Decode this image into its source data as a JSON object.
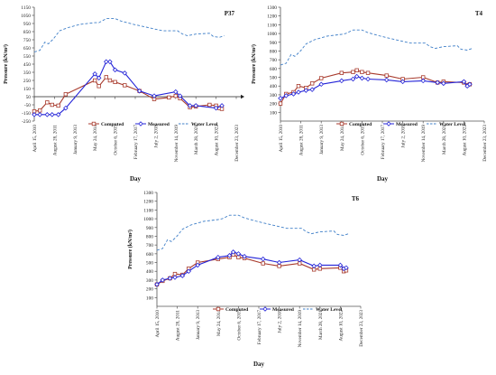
{
  "x_tick_labels": [
    "April 15, 2010",
    "August 28, 2011",
    "January 9, 2013",
    "May 24, 2014",
    "October 6, 2015",
    "February 17, 2017",
    "July 2, 2018",
    "November 14, 2019",
    "March 28, 2021",
    "August 10, 2022",
    "December 23, 2023"
  ],
  "legend": {
    "computed": "Computed",
    "measured": "Measured",
    "water": "Water Level"
  },
  "colors": {
    "computed": "#a83a2c",
    "measured": "#2424d8",
    "water": "#3f7fc8",
    "axis": "#555555",
    "ref": "#222222"
  },
  "chart_data": [
    {
      "type": "line",
      "title": "P37",
      "xlabel": "Day",
      "ylabel": "Pressure (kN/m²)",
      "ylim": [
        -250,
        1150
      ],
      "yticks": [
        -250,
        -150,
        -50,
        50,
        150,
        250,
        350,
        450,
        550,
        650,
        750,
        850,
        950,
        1050,
        1150
      ],
      "xlim": [
        "2010-04-15",
        "2023-12-23"
      ],
      "legend_position": "bottom",
      "series": [
        {
          "name": "Computed",
          "points": [
            [
              "2010-04-15",
              -130
            ],
            [
              "2010-09-01",
              -120
            ],
            [
              "2011-03-01",
              -20
            ],
            [
              "2011-07-01",
              -50
            ],
            [
              "2011-12-01",
              -60
            ],
            [
              "2012-06-01",
              80
            ],
            [
              "2014-05-24",
              250
            ],
            [
              "2014-09-01",
              180
            ],
            [
              "2015-03-01",
              290
            ],
            [
              "2015-06-01",
              250
            ],
            [
              "2015-10-06",
              230
            ],
            [
              "2016-06-01",
              190
            ],
            [
              "2017-06-01",
              120
            ],
            [
              "2018-06-01",
              20
            ],
            [
              "2019-06-01",
              40
            ],
            [
              "2019-11-14",
              60
            ],
            [
              "2020-03-01",
              30
            ],
            [
              "2020-11-01",
              -80
            ],
            [
              "2021-03-28",
              -70
            ],
            [
              "2022-03-01",
              -50
            ],
            [
              "2022-08-10",
              -60
            ],
            [
              "2022-11-01",
              -90
            ],
            [
              "2023-01-01",
              -100
            ]
          ]
        },
        {
          "name": "Measured",
          "points": [
            [
              "2010-04-15",
              -170
            ],
            [
              "2010-09-01",
              -170
            ],
            [
              "2011-03-01",
              -170
            ],
            [
              "2011-07-01",
              -170
            ],
            [
              "2011-12-01",
              -170
            ],
            [
              "2012-06-01",
              -90
            ],
            [
              "2014-05-24",
              330
            ],
            [
              "2014-09-01",
              280
            ],
            [
              "2015-03-01",
              480
            ],
            [
              "2015-06-01",
              480
            ],
            [
              "2015-10-06",
              380
            ],
            [
              "2016-06-01",
              340
            ],
            [
              "2017-06-01",
              120
            ],
            [
              "2018-06-01",
              60
            ],
            [
              "2019-11-14",
              110
            ],
            [
              "2020-03-01",
              60
            ],
            [
              "2020-11-01",
              -60
            ],
            [
              "2021-03-28",
              -60
            ],
            [
              "2022-08-10",
              -90
            ],
            [
              "2023-01-01",
              -60
            ]
          ]
        },
        {
          "name": "Water Level",
          "dashed": true,
          "points": [
            [
              "2010-04-15",
              600
            ],
            [
              "2010-09-01",
              620
            ],
            [
              "2011-01-01",
              720
            ],
            [
              "2011-04-01",
              700
            ],
            [
              "2011-08-01",
              760
            ],
            [
              "2012-01-01",
              860
            ],
            [
              "2012-08-01",
              900
            ],
            [
              "2013-06-01",
              940
            ],
            [
              "2014-05-24",
              960
            ],
            [
              "2014-09-01",
              960
            ],
            [
              "2015-03-01",
              1010
            ],
            [
              "2015-10-06",
              1010
            ],
            [
              "2016-03-01",
              980
            ],
            [
              "2017-01-01",
              940
            ],
            [
              "2018-01-01",
              900
            ],
            [
              "2019-01-01",
              860
            ],
            [
              "2020-01-01",
              860
            ],
            [
              "2020-05-01",
              820
            ],
            [
              "2020-09-01",
              800
            ],
            [
              "2021-03-28",
              820
            ],
            [
              "2022-03-01",
              830
            ],
            [
              "2022-06-01",
              790
            ],
            [
              "2022-11-01",
              780
            ],
            [
              "2023-03-01",
              800
            ]
          ]
        }
      ],
      "reference_line": 50
    },
    {
      "type": "line",
      "title": "T4",
      "xlabel": "Day",
      "ylabel": "Pressure (kN/m²)",
      "ylim": [
        0,
        1300
      ],
      "yticks": [
        100,
        200,
        300,
        400,
        500,
        600,
        700,
        800,
        900,
        1000,
        1100,
        1200,
        1300
      ],
      "xlim": [
        "2010-04-15",
        "2023-12-23"
      ],
      "legend_position": "bottom",
      "series": [
        {
          "name": "Computed",
          "points": [
            [
              "2010-04-15",
              200
            ],
            [
              "2010-09-01",
              310
            ],
            [
              "2011-03-01",
              330
            ],
            [
              "2011-07-01",
              400
            ],
            [
              "2012-01-01",
              380
            ],
            [
              "2012-06-01",
              430
            ],
            [
              "2013-01-09",
              490
            ],
            [
              "2014-05-24",
              550
            ],
            [
              "2015-03-01",
              560
            ],
            [
              "2015-06-01",
              580
            ],
            [
              "2015-10-06",
              560
            ],
            [
              "2016-03-01",
              550
            ],
            [
              "2017-06-01",
              520
            ],
            [
              "2018-07-02",
              480
            ],
            [
              "2019-11-14",
              500
            ],
            [
              "2020-11-01",
              440
            ],
            [
              "2021-03-28",
              450
            ],
            [
              "2022-08-10",
              440
            ],
            [
              "2022-11-01",
              410
            ],
            [
              "2023-01-01",
              420
            ]
          ]
        },
        {
          "name": "Measured",
          "points": [
            [
              "2010-04-15",
              260
            ],
            [
              "2010-09-01",
              290
            ],
            [
              "2011-03-01",
              310
            ],
            [
              "2011-07-01",
              330
            ],
            [
              "2012-01-01",
              350
            ],
            [
              "2012-06-01",
              360
            ],
            [
              "2013-01-09",
              420
            ],
            [
              "2014-05-24",
              460
            ],
            [
              "2015-03-01",
              480
            ],
            [
              "2015-06-01",
              510
            ],
            [
              "2015-10-06",
              490
            ],
            [
              "2016-03-01",
              480
            ],
            [
              "2017-06-01",
              470
            ],
            [
              "2018-07-02",
              450
            ],
            [
              "2019-11-14",
              460
            ],
            [
              "2020-11-01",
              440
            ],
            [
              "2021-03-28",
              430
            ],
            [
              "2022-08-10",
              450
            ],
            [
              "2022-11-01",
              400
            ],
            [
              "2023-01-01",
              420
            ]
          ]
        },
        {
          "name": "Water Level",
          "dashed": true,
          "points": [
            [
              "2010-04-15",
              640
            ],
            [
              "2010-09-01",
              660
            ],
            [
              "2011-01-01",
              760
            ],
            [
              "2011-04-01",
              740
            ],
            [
              "2011-08-01",
              790
            ],
            [
              "2012-01-01",
              880
            ],
            [
              "2012-08-01",
              930
            ],
            [
              "2013-06-01",
              970
            ],
            [
              "2014-05-24",
              990
            ],
            [
              "2014-09-01",
              1000
            ],
            [
              "2015-03-01",
              1040
            ],
            [
              "2015-10-06",
              1040
            ],
            [
              "2016-03-01",
              1010
            ],
            [
              "2017-01-01",
              970
            ],
            [
              "2018-01-01",
              930
            ],
            [
              "2019-01-01",
              890
            ],
            [
              "2020-01-01",
              890
            ],
            [
              "2020-05-01",
              850
            ],
            [
              "2020-09-01",
              830
            ],
            [
              "2021-03-28",
              850
            ],
            [
              "2022-03-01",
              860
            ],
            [
              "2022-06-01",
              820
            ],
            [
              "2022-11-01",
              810
            ],
            [
              "2023-03-01",
              830
            ]
          ]
        }
      ]
    },
    {
      "type": "line",
      "title": "T6",
      "xlabel": "Day",
      "ylabel": "Pressure (kN/m²)",
      "ylim": [
        0,
        1300
      ],
      "yticks": [
        100,
        200,
        300,
        400,
        500,
        600,
        700,
        800,
        900,
        1000,
        1100,
        1200,
        1300
      ],
      "xlim": [
        "2010-04-15",
        "2023-12-23"
      ],
      "legend_position": "bottom",
      "series": [
        {
          "name": "Computed",
          "points": [
            [
              "2010-04-15",
              250
            ],
            [
              "2010-09-01",
              290
            ],
            [
              "2011-03-01",
              320
            ],
            [
              "2011-07-01",
              370
            ],
            [
              "2012-01-01",
              360
            ],
            [
              "2012-06-01",
              430
            ],
            [
              "2013-01-09",
              500
            ],
            [
              "2014-05-24",
              540
            ],
            [
              "2015-03-01",
              560
            ],
            [
              "2015-06-01",
              590
            ],
            [
              "2015-10-06",
              560
            ],
            [
              "2016-03-01",
              550
            ],
            [
              "2017-06-01",
              490
            ],
            [
              "2018-07-02",
              460
            ],
            [
              "2019-11-14",
              490
            ],
            [
              "2020-11-01",
              420
            ],
            [
              "2021-03-28",
              430
            ],
            [
              "2022-08-10",
              440
            ],
            [
              "2022-11-01",
              400
            ],
            [
              "2023-01-01",
              410
            ]
          ]
        },
        {
          "name": "Measured",
          "points": [
            [
              "2010-04-15",
              250
            ],
            [
              "2010-09-01",
              300
            ],
            [
              "2011-03-01",
              320
            ],
            [
              "2011-07-01",
              330
            ],
            [
              "2012-01-01",
              350
            ],
            [
              "2012-06-01",
              400
            ],
            [
              "2013-01-09",
              470
            ],
            [
              "2014-05-24",
              560
            ],
            [
              "2015-03-01",
              580
            ],
            [
              "2015-06-01",
              620
            ],
            [
              "2015-10-06",
              600
            ],
            [
              "2016-03-01",
              570
            ],
            [
              "2017-06-01",
              540
            ],
            [
              "2018-07-02",
              500
            ],
            [
              "2019-11-14",
              530
            ],
            [
              "2020-11-01",
              460
            ],
            [
              "2021-03-28",
              470
            ],
            [
              "2022-08-10",
              470
            ],
            [
              "2022-11-01",
              430
            ],
            [
              "2023-01-01",
              440
            ]
          ]
        },
        {
          "name": "Water Level",
          "dashed": true,
          "points": [
            [
              "2010-04-15",
              640
            ],
            [
              "2010-09-01",
              660
            ],
            [
              "2011-01-01",
              760
            ],
            [
              "2011-04-01",
              740
            ],
            [
              "2011-08-01",
              790
            ],
            [
              "2012-01-01",
              880
            ],
            [
              "2012-08-01",
              930
            ],
            [
              "2013-06-01",
              970
            ],
            [
              "2014-05-24",
              990
            ],
            [
              "2014-09-01",
              1000
            ],
            [
              "2015-03-01",
              1040
            ],
            [
              "2015-10-06",
              1040
            ],
            [
              "2016-03-01",
              1010
            ],
            [
              "2017-01-01",
              970
            ],
            [
              "2018-01-01",
              930
            ],
            [
              "2019-01-01",
              890
            ],
            [
              "2020-01-01",
              890
            ],
            [
              "2020-05-01",
              850
            ],
            [
              "2020-09-01",
              830
            ],
            [
              "2021-03-28",
              850
            ],
            [
              "2022-03-01",
              860
            ],
            [
              "2022-06-01",
              820
            ],
            [
              "2022-11-01",
              810
            ],
            [
              "2023-03-01",
              830
            ]
          ]
        }
      ]
    }
  ]
}
